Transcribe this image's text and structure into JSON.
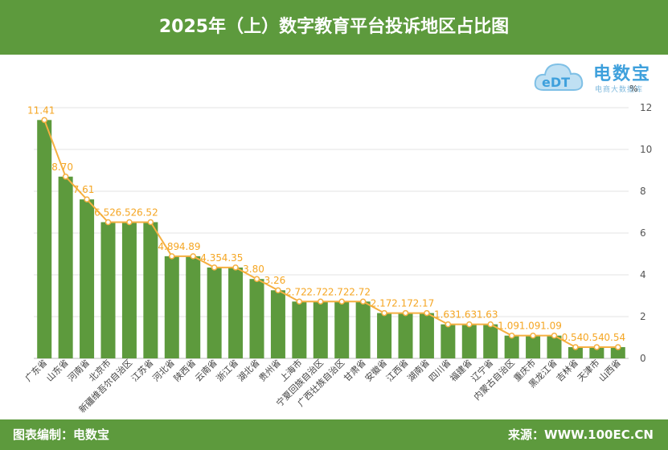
{
  "header": {
    "title": "2025年（上）数字教育平台投诉地区占比图"
  },
  "logo": {
    "brand": "电数宝",
    "sub": "电商大数据库",
    "mark": "eDT"
  },
  "footer": {
    "left": "图表编制：电数宝",
    "right": "来源：WWW.100EC.CN"
  },
  "colors": {
    "bar": "#5d9a3d",
    "line": "#f5b041",
    "header_bg": "#5d9a3d",
    "grid": "#e3e3e3"
  },
  "chart_data": {
    "type": "bar",
    "title": "2025年（上）数字教育平台投诉地区占比图",
    "ylabel": "%",
    "ylim": [
      0,
      12
    ],
    "yticks": [
      0,
      2,
      4,
      6,
      8,
      10,
      12
    ],
    "grid": true,
    "categories": [
      "广东省",
      "山东省",
      "河南省",
      "北京市",
      "新疆维吾尔自治区",
      "江苏省",
      "河北省",
      "陕西省",
      "云南省",
      "浙江省",
      "湖北省",
      "贵州省",
      "上海市",
      "宁夏回族自治区",
      "广西壮族自治区",
      "甘肃省",
      "安徽省",
      "江西省",
      "湖南省",
      "四川省",
      "福建省",
      "辽宁省",
      "内蒙古自治区",
      "重庆市",
      "黑龙江省",
      "吉林省",
      "天津市",
      "山西省"
    ],
    "values": [
      11.41,
      8.7,
      7.61,
      6.52,
      6.52,
      6.52,
      4.89,
      4.89,
      4.35,
      4.35,
      3.8,
      3.26,
      2.72,
      2.72,
      2.72,
      2.72,
      2.17,
      2.17,
      2.17,
      1.63,
      1.63,
      1.63,
      1.09,
      1.09,
      1.09,
      0.54,
      0.54,
      0.54
    ],
    "data_labels": [
      "11.41",
      "8.70",
      "7.61",
      "6.52",
      "6.52",
      "6.52",
      "4.89",
      "4.89",
      "4.35",
      "4.35",
      "3.80",
      "3.26",
      "2.72",
      "2.72",
      "2.72",
      "2.72",
      "2.17",
      "2.17",
      "2.17",
      "1.63",
      "1.63",
      "1.63",
      "1.09",
      "1.09",
      "1.09",
      "0.54",
      "0.54",
      "0.54"
    ]
  }
}
